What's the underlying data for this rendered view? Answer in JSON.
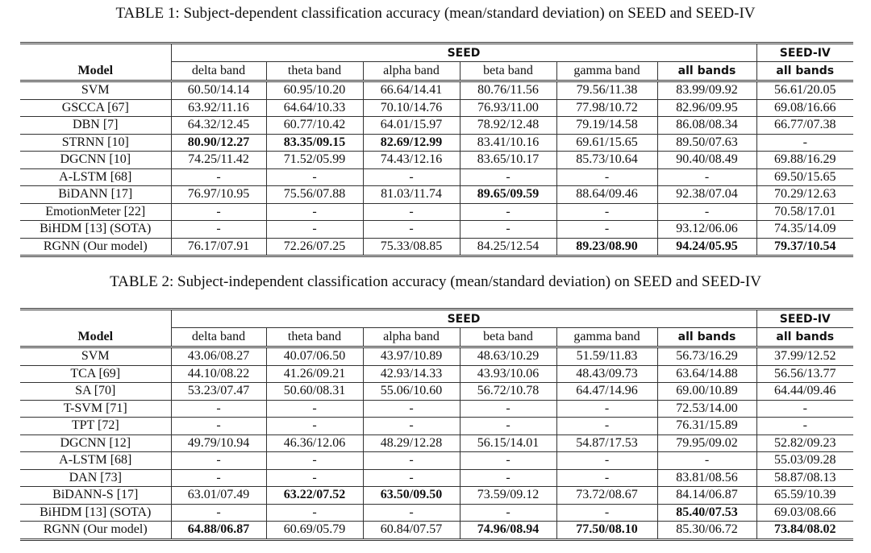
{
  "tables": [
    {
      "title": "TABLE 1: Subject-dependent classification accuracy (mean/standard deviation) on SEED and SEED-IV",
      "group_headers": [
        "SEED",
        "SEED-IV"
      ],
      "columns": [
        "Model",
        "delta band",
        "theta band",
        "alpha band",
        "beta band",
        "gamma band",
        "all bands",
        "all bands"
      ],
      "rows": [
        [
          "SVM",
          "60.50/14.14",
          "60.95/10.20",
          "66.64/14.41",
          "80.76/11.56",
          "79.56/11.38",
          "83.99/09.92",
          "56.61/20.05"
        ],
        [
          "GSCCA [67]",
          "63.92/11.16",
          "64.64/10.33",
          "70.10/14.76",
          "76.93/11.00",
          "77.98/10.72",
          "82.96/09.95",
          "69.08/16.66"
        ],
        [
          "DBN [7]",
          "64.32/12.45",
          "60.77/10.42",
          "64.01/15.97",
          "78.92/12.48",
          "79.19/14.58",
          "86.08/08.34",
          "66.77/07.38"
        ],
        [
          "STRNN [10]",
          "80.90/12.27",
          "83.35/09.15",
          "82.69/12.99",
          "83.41/10.16",
          "69.61/15.65",
          "89.50/07.63",
          "-"
        ],
        [
          "DGCNN [10]",
          "74.25/11.42",
          "71.52/05.99",
          "74.43/12.16",
          "83.65/10.17",
          "85.73/10.64",
          "90.40/08.49",
          "69.88/16.29"
        ],
        [
          "A-LSTM [68]",
          "-",
          "-",
          "-",
          "-",
          "-",
          "-",
          "69.50/15.65"
        ],
        [
          "BiDANN [17]",
          "76.97/10.95",
          "75.56/07.88",
          "81.03/11.74",
          "89.65/09.59",
          "88.64/09.46",
          "92.38/07.04",
          "70.29/12.63"
        ],
        [
          "EmotionMeter [22]",
          "-",
          "-",
          "-",
          "-",
          "-",
          "-",
          "70.58/17.01"
        ],
        [
          "BiHDM [13] (SOTA)",
          "-",
          "-",
          "-",
          "-",
          "-",
          "93.12/06.06",
          "74.35/14.09"
        ],
        [
          "RGNN (Our model)",
          "76.17/07.91",
          "72.26/07.25",
          "75.33/08.85",
          "84.25/12.54",
          "89.23/08.90",
          "94.24/05.95",
          "79.37/10.54"
        ]
      ],
      "bold_cells": [
        [
          3,
          1
        ],
        [
          3,
          2
        ],
        [
          3,
          3
        ],
        [
          6,
          4
        ],
        [
          9,
          5
        ],
        [
          9,
          6
        ],
        [
          9,
          7
        ]
      ]
    },
    {
      "title": "TABLE 2: Subject-independent classification accuracy (mean/standard deviation) on SEED and SEED-IV",
      "group_headers": [
        "SEED",
        "SEED-IV"
      ],
      "columns": [
        "Model",
        "delta band",
        "theta band",
        "alpha band",
        "beta band",
        "gamma band",
        "all bands",
        "all bands"
      ],
      "rows": [
        [
          "SVM",
          "43.06/08.27",
          "40.07/06.50",
          "43.97/10.89",
          "48.63/10.29",
          "51.59/11.83",
          "56.73/16.29",
          "37.99/12.52"
        ],
        [
          "TCA [69]",
          "44.10/08.22",
          "41.26/09.21",
          "42.93/14.33",
          "43.93/10.06",
          "48.43/09.73",
          "63.64/14.88",
          "56.56/13.77"
        ],
        [
          "SA [70]",
          "53.23/07.47",
          "50.60/08.31",
          "55.06/10.60",
          "56.72/10.78",
          "64.47/14.96",
          "69.00/10.89",
          "64.44/09.46"
        ],
        [
          "T-SVM [71]",
          "-",
          "-",
          "-",
          "-",
          "-",
          "72.53/14.00",
          "-"
        ],
        [
          "TPT [72]",
          "-",
          "-",
          "-",
          "-",
          "-",
          "76.31/15.89",
          "-"
        ],
        [
          "DGCNN [12]",
          "49.79/10.94",
          "46.36/12.06",
          "48.29/12.28",
          "56.15/14.01",
          "54.87/17.53",
          "79.95/09.02",
          "52.82/09.23"
        ],
        [
          "A-LSTM [68]",
          "-",
          "-",
          "-",
          "-",
          "-",
          "-",
          "55.03/09.28"
        ],
        [
          "DAN [73]",
          "-",
          "-",
          "-",
          "-",
          "-",
          "83.81/08.56",
          "58.87/08.13"
        ],
        [
          "BiDANN-S [17]",
          "63.01/07.49",
          "63.22/07.52",
          "63.50/09.50",
          "73.59/09.12",
          "73.72/08.67",
          "84.14/06.87",
          "65.59/10.39"
        ],
        [
          "BiHDM [13] (SOTA)",
          "-",
          "-",
          "-",
          "-",
          "-",
          "85.40/07.53",
          "69.03/08.66"
        ],
        [
          "RGNN (Our model)",
          "64.88/06.87",
          "60.69/05.79",
          "60.84/07.57",
          "74.96/08.94",
          "77.50/08.10",
          "85.30/06.72",
          "73.84/08.02"
        ]
      ],
      "bold_cells": [
        [
          8,
          2
        ],
        [
          8,
          3
        ],
        [
          9,
          6
        ],
        [
          10,
          1
        ],
        [
          10,
          4
        ],
        [
          10,
          5
        ],
        [
          10,
          7
        ]
      ]
    }
  ]
}
